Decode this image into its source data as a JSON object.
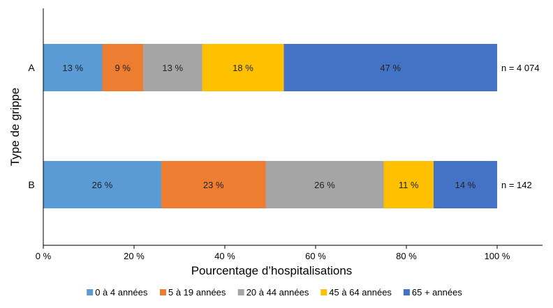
{
  "chart_data": {
    "type": "bar",
    "orientation": "horizontal",
    "stacked": true,
    "xlabel": "Pourcentage d’hospitalisations",
    "ylabel": "Type de grippe",
    "xlim": [
      0,
      100
    ],
    "x_ticks": [
      {
        "value": 0,
        "label": "0 %"
      },
      {
        "value": 20,
        "label": "20 %"
      },
      {
        "value": 40,
        "label": "40 %"
      },
      {
        "value": 60,
        "label": "60 %"
      },
      {
        "value": 80,
        "label": "80 %"
      },
      {
        "value": 100,
        "label": "100 %"
      }
    ],
    "grid": false,
    "legend_position": "bottom",
    "categories": [
      "A",
      "B"
    ],
    "totals": [
      "n = 4 074",
      "n = 142"
    ],
    "series": [
      {
        "name": "0 à 4 années",
        "color": "#5b9bd5",
        "values": [
          13,
          26
        ],
        "labels": [
          "13 %",
          "26 %"
        ]
      },
      {
        "name": "5 à 19 années",
        "color": "#ed7d31",
        "values": [
          9,
          23
        ],
        "labels": [
          "9 %",
          "23 %"
        ]
      },
      {
        "name": "20 à 44 années",
        "color": "#a5a5a5",
        "values": [
          13,
          26
        ],
        "labels": [
          "13 %",
          "26 %"
        ]
      },
      {
        "name": "45 à 64 années",
        "color": "#ffc000",
        "values": [
          18,
          11
        ],
        "labels": [
          "18 %",
          "11 %"
        ]
      },
      {
        "name": "65 + années",
        "color": "#4472c4",
        "values": [
          47,
          14
        ],
        "labels": [
          "47 %",
          "14 %"
        ]
      }
    ]
  }
}
